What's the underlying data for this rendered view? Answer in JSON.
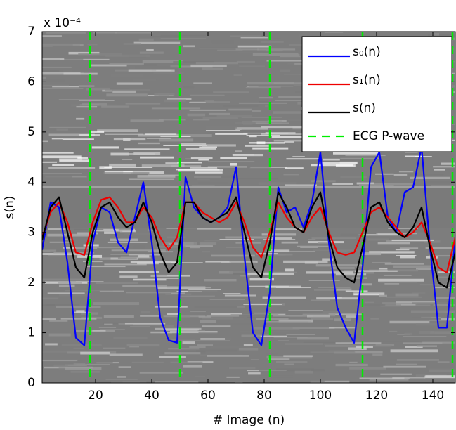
{
  "chart_data": {
    "type": "line",
    "xlabel": "# Image (n)",
    "ylabel": "s(n)",
    "y_multiplier": "x 10⁻⁴",
    "xlim": [
      1,
      148
    ],
    "ylim": [
      0,
      7
    ],
    "xticks": [
      20,
      40,
      60,
      80,
      100,
      120,
      140
    ],
    "yticks": [
      0,
      1,
      2,
      3,
      4,
      5,
      6,
      7
    ],
    "legend": "upper right",
    "x": [
      1,
      4,
      7,
      10,
      13,
      16,
      19,
      22,
      25,
      28,
      31,
      34,
      37,
      40,
      43,
      46,
      49,
      52,
      55,
      58,
      61,
      64,
      67,
      70,
      73,
      76,
      79,
      82,
      85,
      88,
      91,
      94,
      97,
      100,
      103,
      106,
      109,
      112,
      115,
      118,
      121,
      124,
      127,
      130,
      133,
      136,
      139,
      142,
      145,
      148
    ],
    "series": [
      {
        "name": "s₀(n)",
        "color": "#0000ff",
        "values": [
          2.65,
          3.6,
          3.5,
          2.4,
          0.9,
          0.75,
          2.8,
          3.5,
          3.4,
          2.8,
          2.6,
          3.3,
          4.0,
          2.8,
          1.3,
          0.85,
          0.8,
          4.1,
          3.5,
          3.3,
          3.2,
          3.3,
          3.5,
          4.3,
          2.5,
          1.0,
          0.75,
          1.8,
          3.9,
          3.4,
          3.5,
          3.1,
          3.6,
          4.6,
          2.8,
          1.5,
          1.1,
          0.8,
          2.3,
          4.3,
          4.6,
          3.3,
          3.0,
          3.8,
          3.9,
          4.7,
          2.7,
          1.1,
          1.1,
          2.9
        ]
      },
      {
        "name": "s₁(n)",
        "color": "#ee0000",
        "values": [
          2.9,
          3.4,
          3.6,
          3.2,
          2.6,
          2.55,
          3.2,
          3.65,
          3.7,
          3.5,
          3.2,
          3.2,
          3.5,
          3.3,
          2.9,
          2.65,
          2.9,
          3.6,
          3.6,
          3.4,
          3.3,
          3.2,
          3.3,
          3.6,
          3.2,
          2.7,
          2.5,
          3.0,
          3.6,
          3.3,
          3.1,
          3.0,
          3.3,
          3.5,
          3.0,
          2.6,
          2.55,
          2.6,
          3.0,
          3.4,
          3.5,
          3.3,
          3.1,
          2.9,
          3.0,
          3.2,
          2.8,
          2.3,
          2.2,
          2.9
        ]
      },
      {
        "name": "s(n)",
        "color": "#000000",
        "values": [
          2.85,
          3.5,
          3.7,
          3.0,
          2.3,
          2.1,
          3.0,
          3.5,
          3.6,
          3.3,
          3.1,
          3.2,
          3.6,
          3.2,
          2.6,
          2.2,
          2.4,
          3.6,
          3.6,
          3.3,
          3.2,
          3.3,
          3.4,
          3.7,
          3.0,
          2.3,
          2.1,
          2.8,
          3.8,
          3.5,
          3.1,
          3.0,
          3.5,
          3.8,
          2.9,
          2.3,
          2.1,
          2.0,
          2.7,
          3.5,
          3.6,
          3.2,
          3.0,
          2.9,
          3.1,
          3.5,
          2.7,
          2.0,
          1.9,
          2.6
        ]
      }
    ],
    "vlines": {
      "name": "ECG P-wave",
      "color": "#00ee00",
      "x": [
        18,
        50,
        82,
        115,
        147
      ]
    }
  }
}
